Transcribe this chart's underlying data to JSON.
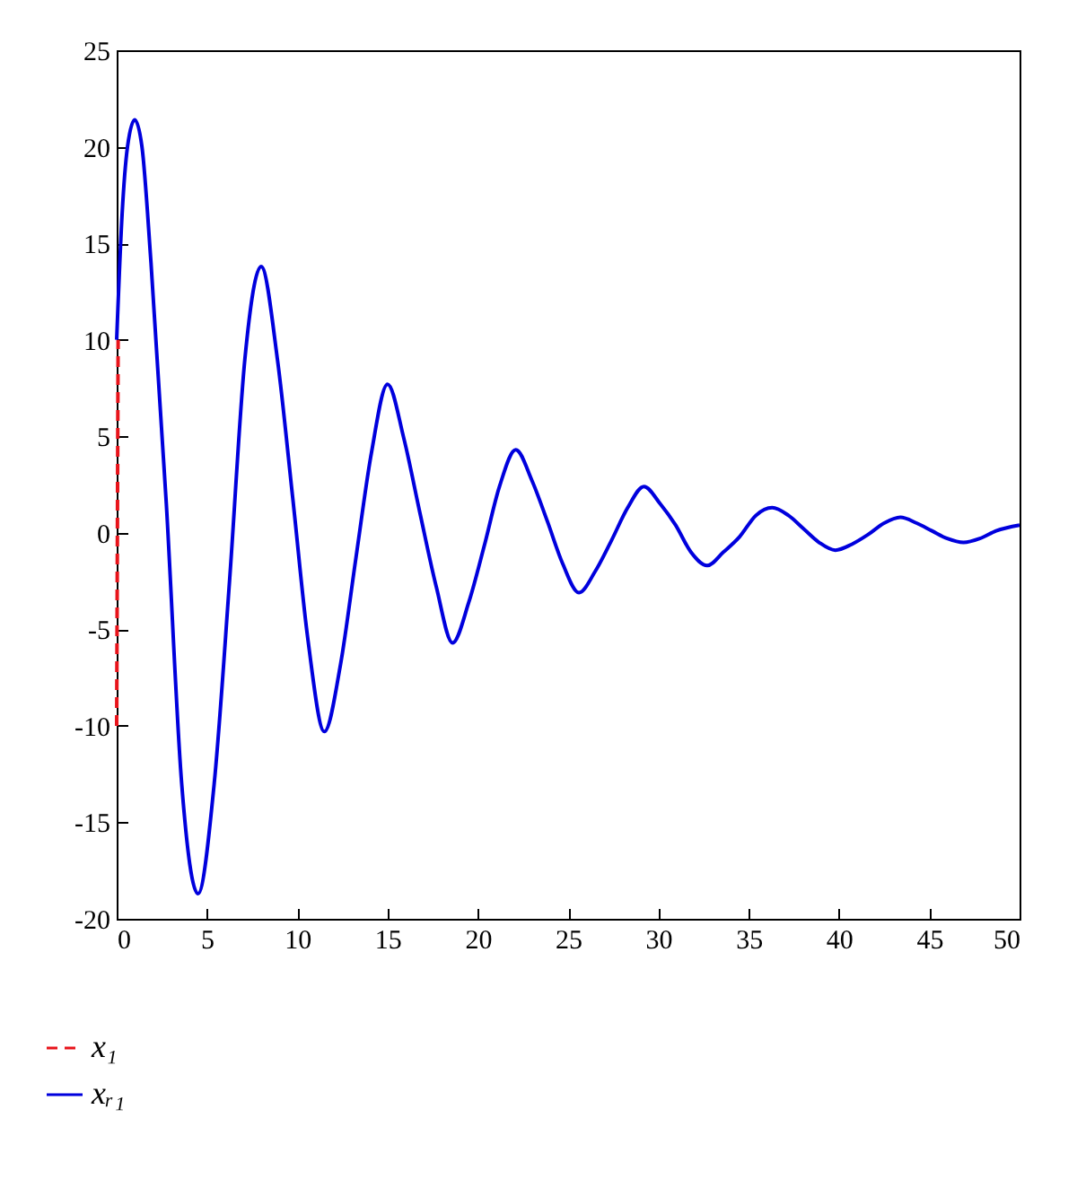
{
  "chart_data": {
    "type": "line",
    "xlim": [
      0,
      50
    ],
    "ylim": [
      -20,
      25
    ],
    "xticks": [
      0,
      5,
      10,
      15,
      20,
      25,
      30,
      35,
      40,
      45,
      50
    ],
    "yticks": [
      -20,
      -15,
      -10,
      -5,
      0,
      5,
      10,
      15,
      20,
      25
    ],
    "grid": false,
    "legend": "bottom left",
    "marker": "none",
    "series": [
      {
        "name": "x₁",
        "color": "#e8141b",
        "line_style": "dashed",
        "x": [
          0,
          0.08
        ],
        "values": [
          -10,
          10
        ]
      },
      {
        "name": "xᵣ₁",
        "color": "#0000dd",
        "line_style": "solid",
        "x": [
          0,
          0.3,
          0.6,
          1.0,
          1.4,
          1.9,
          2.75,
          3.6,
          4.5,
          5.4,
          6.25,
          7.1,
          8.0,
          8.9,
          9.75,
          10.6,
          11.5,
          12.4,
          13.25,
          14.1,
          15.0,
          15.9,
          16.8,
          17.7,
          18.6,
          19.5,
          20.35,
          21.2,
          22.1,
          23.0,
          23.85,
          24.7,
          25.6,
          26.5,
          27.4,
          28.3,
          29.2,
          30.1,
          30.95,
          31.8,
          32.7,
          33.6,
          34.5,
          35.4,
          36.3,
          37.2,
          38.05,
          38.9,
          39.8,
          40.7,
          41.6,
          42.5,
          43.4,
          44.3,
          45.15,
          46.0,
          46.9,
          47.8,
          48.7,
          50
        ],
        "values": [
          10,
          16.5,
          20,
          21.4,
          20,
          14,
          1.5,
          -13,
          -18.7,
          -13,
          -2.5,
          9,
          13.8,
          9,
          1.8,
          -5.6,
          -10.3,
          -6.8,
          -1.3,
          4.1,
          7.7,
          4.9,
          1.0,
          -2.8,
          -5.7,
          -3.6,
          -0.7,
          2.4,
          4.3,
          2.7,
          0.6,
          -1.6,
          -3.1,
          -2.0,
          -0.4,
          1.3,
          2.4,
          1.5,
          0.4,
          -1.0,
          -1.7,
          -1.0,
          -0.2,
          0.9,
          1.3,
          0.9,
          0.2,
          -0.5,
          -0.9,
          -0.6,
          -0.1,
          0.5,
          0.8,
          0.5,
          0.1,
          -0.3,
          -0.5,
          -0.3,
          0.1,
          0.4
        ]
      }
    ]
  }
}
